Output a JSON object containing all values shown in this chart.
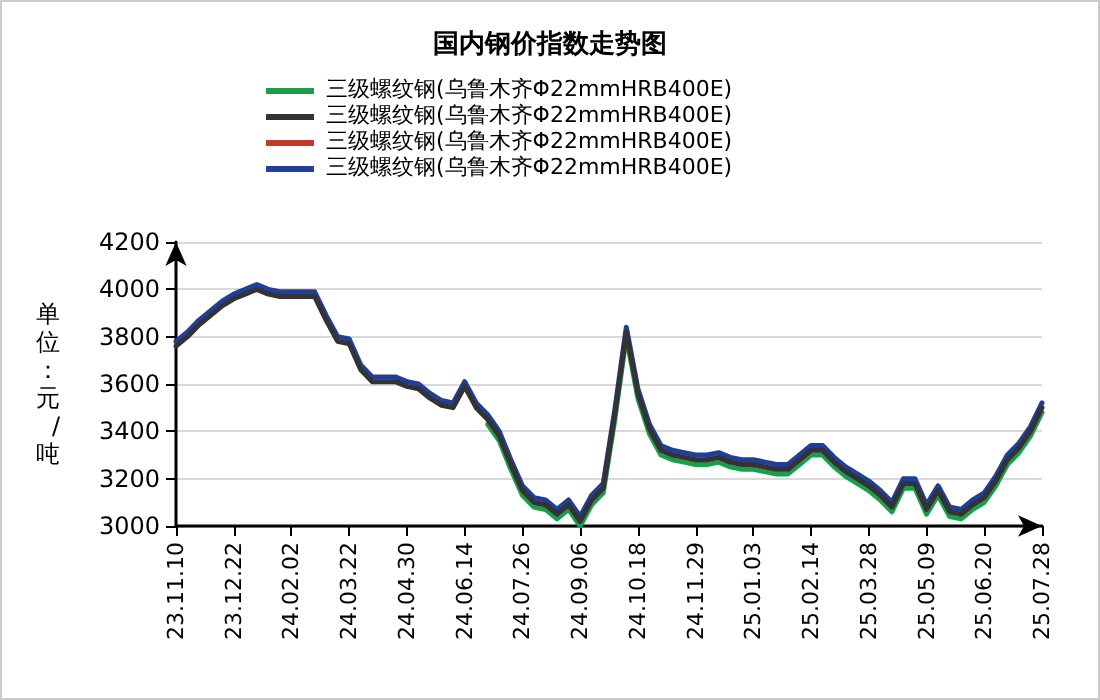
{
  "chart_data": {
    "type": "line",
    "title": "国内钢价指数走势图",
    "ylabel": "单位：元/吨",
    "categories": [
      "23.11.10",
      null,
      null,
      null,
      null,
      "23.12.22",
      null,
      null,
      null,
      null,
      "24.02.02",
      null,
      null,
      null,
      null,
      "24.03.22",
      null,
      null,
      null,
      null,
      "24.04.30",
      null,
      null,
      null,
      null,
      "24.06.14",
      null,
      null,
      null,
      null,
      "24.07.26",
      null,
      null,
      null,
      null,
      "24.09.06",
      null,
      null,
      null,
      null,
      "24.10.18",
      null,
      null,
      null,
      null,
      "24.11.29",
      null,
      null,
      null,
      null,
      "25.01.03",
      null,
      null,
      null,
      null,
      "25.02.14",
      null,
      null,
      null,
      null,
      "25.03.28",
      null,
      null,
      null,
      null,
      "25.05.09",
      null,
      null,
      null,
      null,
      "25.06.20",
      null,
      null,
      null,
      null,
      "25.07.28"
    ],
    "series": [
      {
        "name": "三级螺纹钢(乌鲁木齐Φ22mmHRB400E)",
        "color": "#1a9e4a",
        "values": [
          null,
          null,
          null,
          null,
          null,
          null,
          null,
          null,
          null,
          null,
          null,
          null,
          null,
          null,
          null,
          null,
          null,
          null,
          null,
          null,
          null,
          null,
          null,
          null,
          null,
          null,
          null,
          3430,
          3360,
          3240,
          3130,
          3080,
          3070,
          3030,
          3070,
          3000,
          3090,
          3140,
          3450,
          3800,
          3540,
          3390,
          3300,
          3280,
          3270,
          3260,
          3260,
          3270,
          3250,
          3240,
          3240,
          3230,
          3220,
          3220,
          3260,
          3300,
          3300,
          3250,
          3210,
          3180,
          3150,
          3110,
          3060,
          3160,
          3160,
          3050,
          3130,
          3040,
          3030,
          3070,
          3100,
          3170,
          3260,
          3310,
          3380,
          3480
        ]
      },
      {
        "name": "三级螺纹钢(乌鲁木齐Φ22mmHRB400E)",
        "color": "#333333",
        "values": [
          3760,
          3800,
          3850,
          3890,
          3930,
          3960,
          3980,
          4000,
          3980,
          3970,
          3970,
          3970,
          3970,
          3870,
          3780,
          3770,
          3660,
          3610,
          3610,
          3610,
          3590,
          3580,
          3540,
          3510,
          3500,
          3590,
          3500,
          3450,
          3380,
          3260,
          3150,
          3100,
          3090,
          3050,
          3090,
          3020,
          3110,
          3160,
          3470,
          3820,
          3560,
          3410,
          3320,
          3300,
          3290,
          3280,
          3280,
          3290,
          3270,
          3260,
          3260,
          3250,
          3240,
          3240,
          3280,
          3320,
          3320,
          3270,
          3230,
          3200,
          3170,
          3130,
          3080,
          3180,
          3180,
          3070,
          3150,
          3060,
          3050,
          3090,
          3120,
          3190,
          3280,
          3330,
          3400,
          3500
        ]
      },
      {
        "name": "三级螺纹钢(乌鲁木齐Φ22mmHRB400E)",
        "color": "#c0392b",
        "values": [
          null,
          null,
          null,
          null,
          null,
          null,
          null,
          null,
          null,
          null,
          null,
          null,
          null,
          null,
          null,
          null,
          null,
          null,
          null,
          null,
          null,
          null,
          null,
          null,
          null,
          null,
          null,
          null,
          null,
          null,
          null,
          null,
          null,
          null,
          null,
          null,
          null,
          null,
          null,
          null,
          null,
          null,
          null,
          null,
          null,
          null,
          null,
          null,
          null,
          null,
          null,
          null,
          null,
          null,
          null,
          null,
          null,
          null,
          null,
          null,
          null,
          null,
          null,
          null,
          null,
          null,
          null,
          null,
          null,
          null,
          null,
          null,
          null,
          null,
          null,
          null
        ]
      },
      {
        "name": "三级螺纹钢(乌鲁木齐Φ22mmHRB400E)",
        "color": "#1f3f99",
        "values": [
          3780,
          3820,
          3870,
          3910,
          3950,
          3980,
          4000,
          4020,
          4000,
          3990,
          3990,
          3990,
          3990,
          3890,
          3800,
          3790,
          3680,
          3630,
          3630,
          3630,
          3610,
          3600,
          3560,
          3530,
          3520,
          3610,
          3520,
          3470,
          3400,
          3280,
          3170,
          3120,
          3110,
          3070,
          3110,
          3040,
          3130,
          3180,
          3490,
          3840,
          3580,
          3430,
          3340,
          3320,
          3310,
          3300,
          3300,
          3310,
          3290,
          3280,
          3280,
          3270,
          3260,
          3260,
          3300,
          3340,
          3340,
          3290,
          3250,
          3220,
          3190,
          3150,
          3100,
          3200,
          3200,
          3090,
          3170,
          3080,
          3070,
          3110,
          3140,
          3210,
          3300,
          3350,
          3420,
          3520
        ]
      }
    ],
    "ylim": [
      3000,
      4200
    ],
    "yticks": [
      3000,
      3200,
      3400,
      3600,
      3800,
      4000,
      4200
    ],
    "grid": "y",
    "legend": "top",
    "marker": "none",
    "line_style": "solid"
  }
}
